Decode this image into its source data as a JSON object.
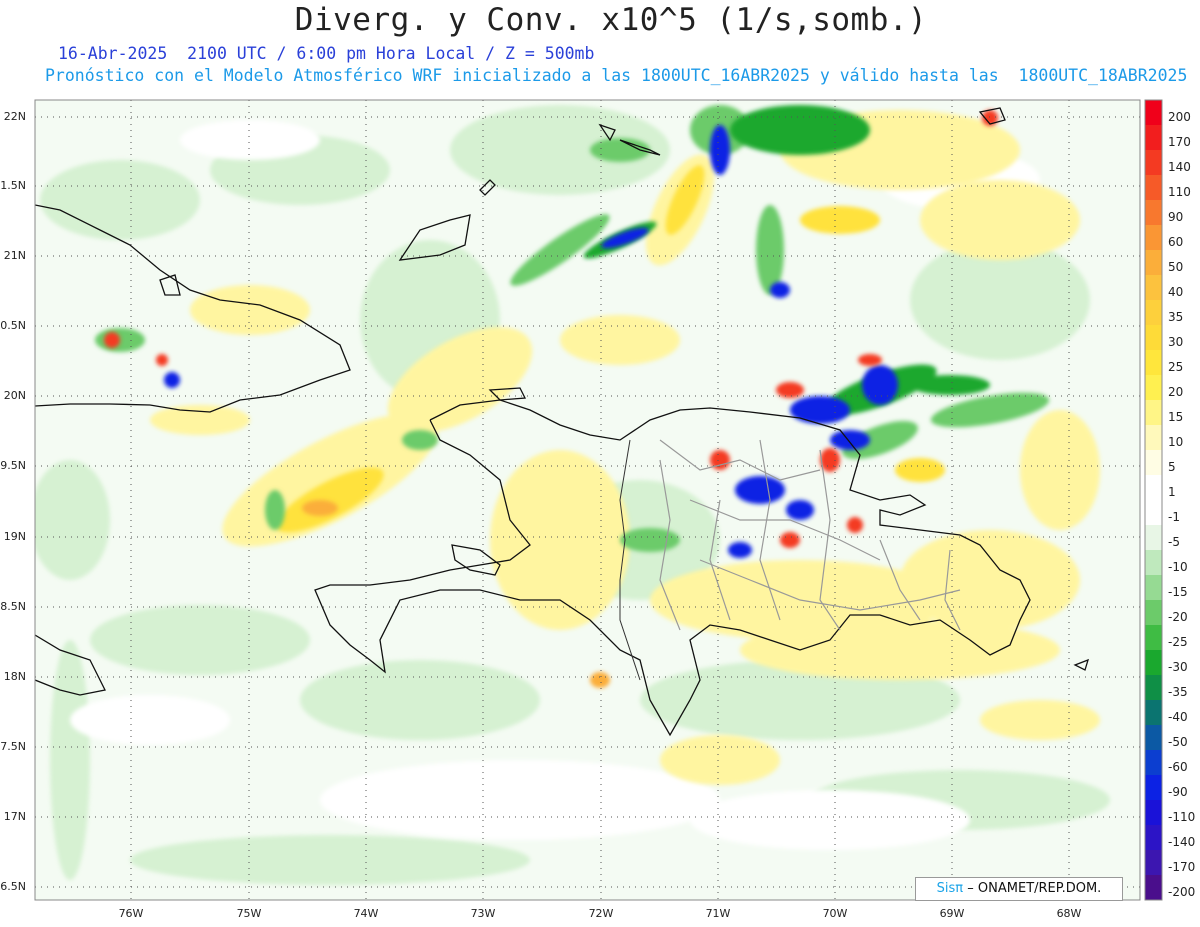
{
  "title": "Diverg. y Conv. x10^5 (1/s,somb.)",
  "subtitle_line1": "16-Abr-2025  2100 UTC / 6:00 pm Hora Local / Z = 500mb",
  "subtitle_line2": "Pronóstico con el Modelo Atmosférico WRF inicializado a las 1800UTC_16ABR2025 y válido hasta las  1800UTC_18ABR2025",
  "credit": {
    "logo": "Sisπ",
    "text": "– ONAMET/REP.DOM."
  },
  "lat_labels": [
    "22N",
    "1.5N",
    "21N",
    "0.5N",
    "20N",
    "9.5N",
    "19N",
    "8.5N",
    "18N",
    "7.5N",
    "17N",
    "6.5N"
  ],
  "lon_labels": [
    "76W",
    "75W",
    "74W",
    "73W",
    "72W",
    "71W",
    "70W",
    "69W",
    "68W"
  ],
  "colorbar": {
    "labels": [
      "200",
      "170",
      "140",
      "110",
      "90",
      "60",
      "50",
      "40",
      "35",
      "30",
      "25",
      "20",
      "15",
      "10",
      "5",
      "1",
      "-1",
      "-5",
      "-10",
      "-15",
      "-20",
      "-25",
      "-30",
      "-35",
      "-40",
      "-50",
      "-60",
      "-90",
      "-110",
      "-140",
      "-170",
      "-200"
    ],
    "colors": [
      "#f0001a",
      "#f21e1e",
      "#f43a22",
      "#f65a28",
      "#f8782e",
      "#fa9634",
      "#fbae3a",
      "#fcc23e",
      "#fdd03c",
      "#fedb38",
      "#ffe63c",
      "#fff050",
      "#fff586",
      "#fff9bb",
      "#fffde4",
      "#ffffff",
      "#ffffff",
      "#e8f6e6",
      "#bfe9bd",
      "#96da93",
      "#6ccb6a",
      "#3fbc44",
      "#1aa82e",
      "#0f8f46",
      "#0b7470",
      "#0c59a4",
      "#0c3ed0",
      "#0c22e4",
      "#1a12d8",
      "#2c14c6",
      "#3c16b0",
      "#4a0e8c"
    ]
  }
}
